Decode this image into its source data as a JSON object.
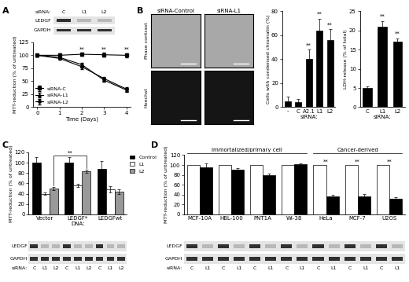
{
  "panel_labels": [
    "A",
    "B",
    "C",
    "D"
  ],
  "chart_data": [
    {
      "type": "line",
      "xlabel": "Time (Days)",
      "ylabel": "MTT-reduction (% of untreated)",
      "x": [
        0,
        1,
        2,
        3,
        4
      ],
      "xlim": [
        -0.2,
        4.2
      ],
      "xticks": [
        0,
        1,
        2,
        3,
        4
      ],
      "ylim": [
        0,
        125
      ],
      "yticks": [
        0,
        25,
        50,
        75,
        100,
        125
      ],
      "legend": "lower left",
      "series": [
        {
          "name": "siRNA-C",
          "color": "#000000",
          "marker": "square",
          "values": [
            100,
            100,
            102,
            101,
            100
          ],
          "errors": [
            2,
            3,
            3,
            4,
            4
          ]
        },
        {
          "name": "siRNA-L1",
          "color": "#000000",
          "marker": "triangle",
          "values": [
            100,
            96,
            82,
            52,
            33
          ],
          "errors": [
            2,
            3,
            4,
            3,
            3
          ]
        },
        {
          "name": "siRNA-L2",
          "color": "#000000",
          "marker": "circle",
          "values": [
            100,
            94,
            78,
            55,
            35
          ],
          "errors": [
            2,
            3,
            4,
            3,
            3
          ]
        }
      ],
      "annotations": [
        {
          "text": "**",
          "x": 2
        },
        {
          "text": "**",
          "x": 3
        },
        {
          "text": "**",
          "x": 4
        }
      ]
    },
    {
      "type": "bar",
      "xlabel": "siRNA:",
      "ylabel": "Cells with condensed chromatin (%)",
      "categories": [
        "-",
        "C",
        "A2.1",
        "L1",
        "L2"
      ],
      "values": [
        5,
        4,
        40,
        64,
        56
      ],
      "errors": [
        4,
        3,
        8,
        10,
        9
      ],
      "color": "#000000",
      "ylim": [
        0,
        80
      ],
      "yticks": [
        0,
        20,
        40,
        60,
        80
      ],
      "annotations": [
        {
          "text": "**",
          "category": "A2.1"
        },
        {
          "text": "**",
          "category": "L1"
        },
        {
          "text": "**",
          "category": "L2"
        }
      ]
    },
    {
      "type": "bar",
      "xlabel": "siRNA:",
      "ylabel": "LDH-release (% of total)",
      "categories": [
        "C",
        "L1",
        "L2"
      ],
      "values": [
        5,
        21,
        17
      ],
      "errors": [
        0.5,
        1.5,
        1
      ],
      "color": "#000000",
      "ylim": [
        0,
        25
      ],
      "yticks": [
        0,
        5,
        10,
        15,
        20,
        25
      ],
      "annotations": [
        {
          "text": "**",
          "category": "L1"
        },
        {
          "text": "**",
          "category": "L2"
        }
      ]
    },
    {
      "type": "bar",
      "xlabel": "DNA:",
      "ylabel": "MTT-reduction (% of untreated)",
      "categories": [
        "Vector",
        "LEDGF*",
        "LEDGFwt"
      ],
      "series": [
        {
          "name": "Control",
          "color": "#000000",
          "values": [
            100,
            100,
            88
          ],
          "errors": [
            10,
            10,
            15
          ]
        },
        {
          "name": "L1",
          "color": "#ffffff",
          "values": [
            40,
            56,
            48
          ],
          "errors": [
            2,
            3,
            6
          ]
        },
        {
          "name": "L2",
          "color": "#999999",
          "values": [
            50,
            84,
            44
          ],
          "errors": [
            3,
            3,
            5
          ]
        }
      ],
      "ylim": [
        0,
        120
      ],
      "yticks": [
        0,
        20,
        40,
        60,
        80,
        100,
        120
      ],
      "legend": "right",
      "brackets": [
        {
          "text": "**",
          "from": {
            "category": "Vector",
            "series": "L2"
          },
          "to": {
            "category": "LEDGF*",
            "series": "L2"
          }
        }
      ]
    },
    {
      "type": "bar",
      "ylabel": "MTT-reduction (% of untreated)",
      "categories": [
        "MCF-10A",
        "HBL-100",
        "PNT1A",
        "WI-38",
        "HeLa",
        "MCF-7",
        "U2OS"
      ],
      "series": [
        {
          "color": "#ffffff",
          "values": [
            100,
            100,
            100,
            100,
            100,
            100,
            100
          ]
        },
        {
          "color": "#000000",
          "values": [
            95,
            90,
            80,
            101,
            36,
            37,
            32
          ],
          "errors": [
            8,
            3,
            2,
            2,
            3,
            4,
            3
          ]
        }
      ],
      "ylim": [
        0,
        120
      ],
      "yticks": [
        0,
        20,
        40,
        60,
        80,
        100,
        120
      ],
      "group_labels": [
        {
          "text": "Immortalized/primary cell",
          "categories": [
            "MCF-10A",
            "HBL-100",
            "PNT1A",
            "WI-38"
          ]
        },
        {
          "text": "Cancer-derived",
          "categories": [
            "HeLa",
            "MCF-7",
            "U2OS"
          ]
        }
      ],
      "annotations": [
        {
          "text": "**",
          "category": "HeLa"
        },
        {
          "text": "**",
          "category": "MCF-7"
        },
        {
          "text": "**",
          "category": "U2OS"
        }
      ]
    }
  ],
  "blots": [
    {
      "lane_title": "siRNA:",
      "lanes": [
        "C",
        "L1",
        "L2"
      ],
      "rows": [
        "LEDGF",
        "GAPDH"
      ]
    },
    {
      "lane_title": "siRNA:",
      "lanes": [
        "C",
        "L1",
        "L2",
        "C",
        "L1",
        "L2",
        "C",
        "L1",
        "L2"
      ],
      "rows": [
        "LEDGF",
        "GAPDH"
      ]
    },
    {
      "lane_title": "siRNA:",
      "lanes": [
        "C",
        "L1",
        "C",
        "L1",
        "C",
        "L1",
        "C",
        "L1",
        "C",
        "L1",
        "C",
        "L1",
        "C",
        "L1"
      ],
      "rows": [
        "LEDGF",
        "GAPDH"
      ]
    }
  ],
  "micrographs": {
    "columns": [
      "siRNA-Control",
      "siRNA-L1"
    ],
    "rows": [
      "Phase contrast",
      "Hoechst"
    ]
  }
}
